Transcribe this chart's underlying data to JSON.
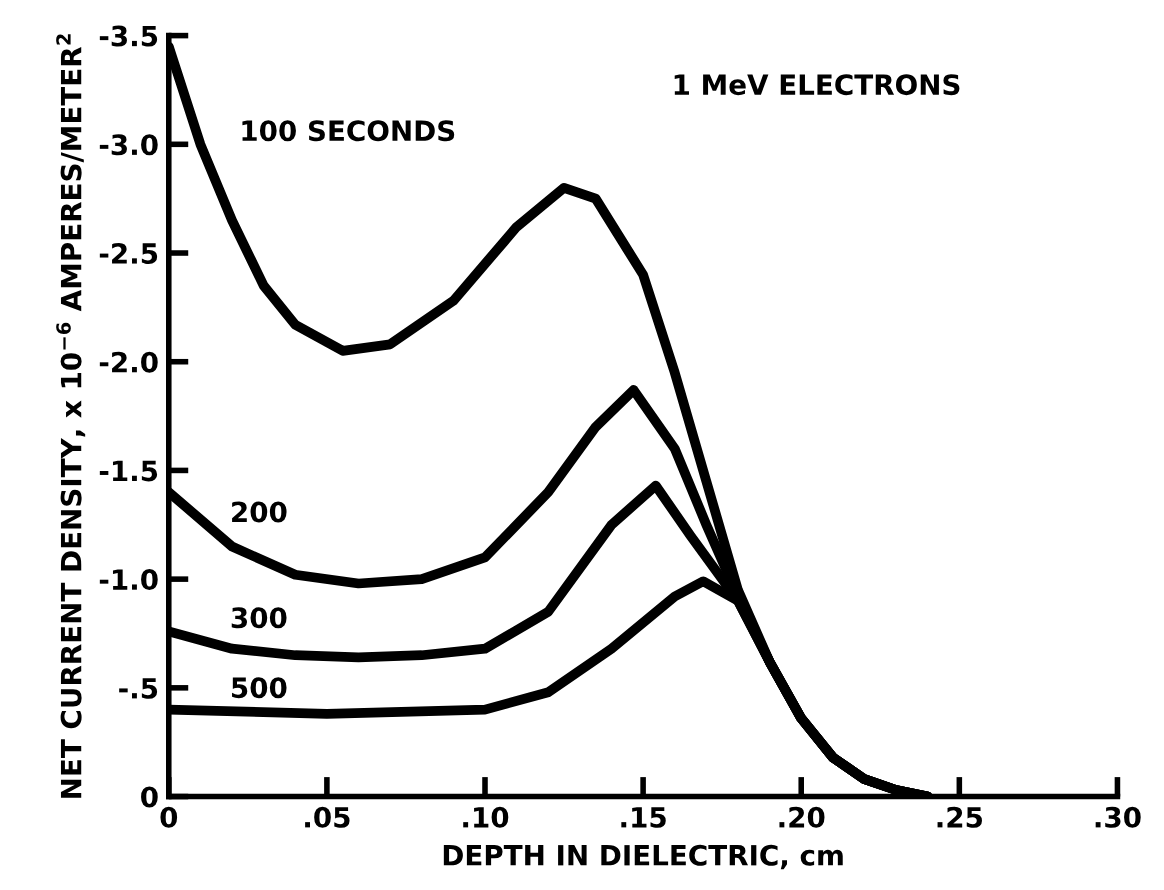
{
  "chart_data": {
    "type": "line",
    "xlabel": "DEPTH IN DIELECTRIC, cm",
    "ylabel": "NET CURRENT DENSITY, x 10$^{−6}$ AMPERES/METER$^{2}$",
    "annotations": [
      "1 MeV ELECTRONS"
    ],
    "xlim": [
      0,
      0.3
    ],
    "xticks": [
      {
        "value": 0,
        "label": "0"
      },
      {
        "value": 0.05,
        "label": ".05"
      },
      {
        "value": 0.1,
        "label": ".10"
      },
      {
        "value": 0.15,
        "label": ".15"
      },
      {
        "value": 0.2,
        "label": ".20"
      },
      {
        "value": 0.25,
        "label": ".25"
      },
      {
        "value": 0.3,
        "label": ".30"
      }
    ],
    "ylim": [
      0,
      -3.5
    ],
    "yticks": [
      {
        "value": 0,
        "label": "0"
      },
      {
        "value": -0.5,
        "label": "-.5"
      },
      {
        "value": -1.0,
        "label": "-1.0"
      },
      {
        "value": -1.5,
        "label": "-1.5"
      },
      {
        "value": -2.0,
        "label": "-2.0"
      },
      {
        "value": -2.5,
        "label": "-2.5"
      },
      {
        "value": -3.0,
        "label": "-3.0"
      },
      {
        "value": -3.5,
        "label": "-3.5"
      }
    ],
    "grid": false,
    "legend": false,
    "marker": "none",
    "line_style": "solid",
    "series": [
      {
        "name": "100 SECONDS",
        "color": "#000000",
        "x": [
          0,
          0.01,
          0.02,
          0.03,
          0.04,
          0.055,
          0.07,
          0.09,
          0.11,
          0.125,
          0.135,
          0.15,
          0.16,
          0.17,
          0.18,
          0.19,
          0.2,
          0.21,
          0.22,
          0.23,
          0.24
        ],
        "values": [
          -3.45,
          -3.0,
          -2.65,
          -2.35,
          -2.17,
          -2.05,
          -2.08,
          -2.28,
          -2.62,
          -2.8,
          -2.75,
          -2.4,
          -1.95,
          -1.45,
          -0.95,
          -0.62,
          -0.36,
          -0.18,
          -0.08,
          -0.03,
          0
        ]
      },
      {
        "name": "200",
        "color": "#000000",
        "x": [
          0,
          0.02,
          0.04,
          0.06,
          0.08,
          0.1,
          0.12,
          0.135,
          0.147,
          0.16,
          0.17,
          0.18,
          0.19,
          0.2,
          0.21,
          0.22,
          0.23,
          0.24
        ],
        "values": [
          -1.4,
          -1.15,
          -1.02,
          -0.98,
          -1.0,
          -1.1,
          -1.4,
          -1.7,
          -1.87,
          -1.6,
          -1.25,
          -0.92,
          -0.62,
          -0.36,
          -0.18,
          -0.08,
          -0.03,
          0
        ]
      },
      {
        "name": "300",
        "color": "#000000",
        "x": [
          0,
          0.02,
          0.04,
          0.06,
          0.08,
          0.1,
          0.12,
          0.14,
          0.154,
          0.165,
          0.18,
          0.19,
          0.2,
          0.21,
          0.22,
          0.23,
          0.24
        ],
        "values": [
          -0.76,
          -0.68,
          -0.65,
          -0.64,
          -0.65,
          -0.68,
          -0.85,
          -1.25,
          -1.43,
          -1.2,
          -0.9,
          -0.62,
          -0.36,
          -0.18,
          -0.08,
          -0.03,
          0
        ]
      },
      {
        "name": "500",
        "color": "#000000",
        "x": [
          0,
          0.05,
          0.1,
          0.12,
          0.14,
          0.16,
          0.169,
          0.18,
          0.19,
          0.2,
          0.21,
          0.22,
          0.23,
          0.24
        ],
        "values": [
          -0.4,
          -0.38,
          -0.4,
          -0.48,
          -0.68,
          -0.92,
          -0.99,
          -0.9,
          -0.62,
          -0.36,
          -0.18,
          -0.08,
          -0.03,
          0
        ]
      }
    ]
  }
}
